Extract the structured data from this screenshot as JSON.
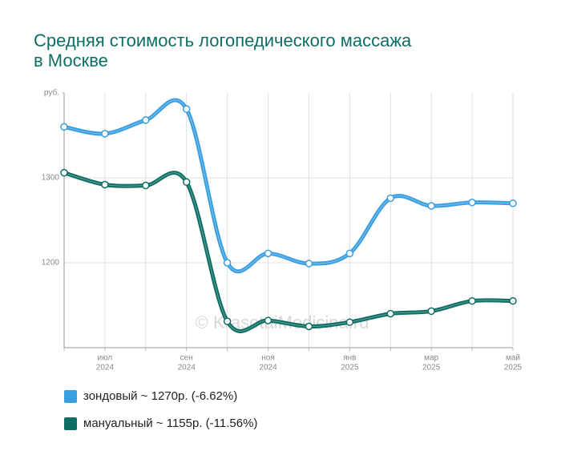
{
  "chart_data": {
    "type": "line",
    "title": [
      "Средняя стоимость логопедического массажа",
      "в Москве"
    ],
    "watermark": "© KrasotaiMedicina.ru",
    "categories": [
      null,
      [
        "июл",
        "2024"
      ],
      null,
      [
        "сен",
        "2024"
      ],
      null,
      [
        "ноя",
        "2024"
      ],
      null,
      [
        "янв",
        "2025"
      ],
      null,
      [
        "мар",
        "2025"
      ],
      null,
      [
        "май",
        "2025"
      ]
    ],
    "series": [
      {
        "name": "зондовый ~ 1270р. (-6.62%)",
        "color": "#3a9fe0",
        "values": [
          1360,
          1352,
          1368,
          1381,
          1200,
          1211,
          1199,
          1211,
          1276,
          1267,
          1271,
          1270
        ]
      },
      {
        "name": "мануальный ~ 1155р. (-11.56%)",
        "color": "#0e6e63",
        "values": [
          1306,
          1292,
          1291,
          1295,
          1131,
          1132,
          1125,
          1130,
          1140,
          1143,
          1155,
          1155
        ]
      }
    ],
    "ylim": [
      1100,
      1400
    ],
    "yticks": [
      1200,
      1300,
      {
        "value": 1400,
        "label": "руб."
      }
    ],
    "grid": true
  }
}
